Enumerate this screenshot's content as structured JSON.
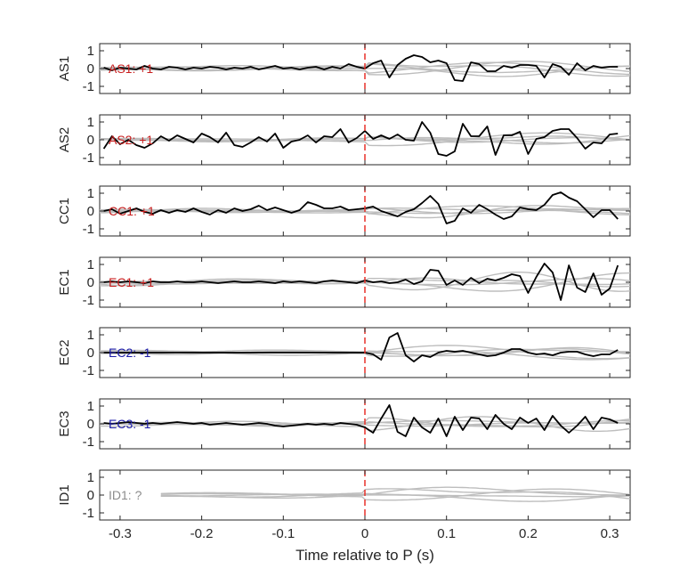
{
  "chart_data": {
    "type": "line",
    "xlabel": "Time relative to P (s)",
    "xlim": [
      -0.325,
      0.325
    ],
    "xticks": [
      -0.3,
      -0.2,
      -0.1,
      0,
      0.1,
      0.2,
      0.3
    ],
    "xtick_labels": [
      "-0.3",
      "-0.2",
      "-0.1",
      "0",
      "0.1",
      "0.2",
      "0.3"
    ],
    "ylim": [
      -1.4,
      1.4
    ],
    "yticks": [
      1,
      0,
      -1
    ],
    "ytick_labels": [
      "1",
      "0",
      "-1"
    ],
    "marker_x": 0,
    "marker_color": "#e8312a",
    "background_series_color": "#bdbdbd",
    "main_series_color": "#000000",
    "panels": [
      {
        "ylabel": "AS1",
        "annotation": "AS1: +1",
        "annotation_color": "#c81e1e",
        "series": {
          "x": [
            -0.32,
            -0.31,
            -0.3,
            -0.29,
            -0.28,
            -0.27,
            -0.26,
            -0.25,
            -0.24,
            -0.23,
            -0.22,
            -0.21,
            -0.2,
            -0.19,
            -0.18,
            -0.17,
            -0.16,
            -0.15,
            -0.14,
            -0.13,
            -0.12,
            -0.11,
            -0.1,
            -0.09,
            -0.08,
            -0.07,
            -0.06,
            -0.05,
            -0.04,
            -0.03,
            -0.02,
            -0.01,
            0,
            0.01,
            0.02,
            0.03,
            0.04,
            0.05,
            0.06,
            0.07,
            0.08,
            0.09,
            0.1,
            0.11,
            0.12,
            0.13,
            0.14,
            0.15,
            0.16,
            0.17,
            0.18,
            0.19,
            0.2,
            0.21,
            0.22,
            0.23,
            0.24,
            0.25,
            0.26,
            0.27,
            0.28,
            0.29,
            0.3,
            0.31
          ],
          "y": [
            0.05,
            -0.1,
            0.05,
            0.0,
            -0.05,
            0.15,
            0.0,
            -0.05,
            0.1,
            0.05,
            -0.05,
            0.05,
            0.0,
            0.1,
            0.05,
            -0.05,
            0.05,
            0.0,
            0.1,
            -0.05,
            0.05,
            0.15,
            0.0,
            0.05,
            -0.05,
            0.05,
            0.1,
            -0.05,
            0.1,
            0.0,
            0.25,
            0.1,
            0.0,
            0.3,
            0.45,
            -0.5,
            0.2,
            0.55,
            0.75,
            0.65,
            0.35,
            0.45,
            0.3,
            -0.65,
            -0.7,
            0.35,
            0.25,
            -0.15,
            -0.15,
            0.15,
            0.05,
            0.2,
            0.2,
            0.15,
            -0.5,
            0.25,
            0.1,
            -0.35,
            0.3,
            -0.1,
            0.15,
            0.05,
            0.1,
            0.1
          ]
        }
      },
      {
        "ylabel": "AS2",
        "annotation": "AS2: +1",
        "annotation_color": "#c81e1e",
        "series": {
          "x": [
            -0.32,
            -0.31,
            -0.3,
            -0.29,
            -0.28,
            -0.27,
            -0.26,
            -0.25,
            -0.24,
            -0.23,
            -0.22,
            -0.21,
            -0.2,
            -0.19,
            -0.18,
            -0.17,
            -0.16,
            -0.15,
            -0.14,
            -0.13,
            -0.12,
            -0.11,
            -0.1,
            -0.09,
            -0.08,
            -0.07,
            -0.06,
            -0.05,
            -0.04,
            -0.03,
            -0.02,
            -0.01,
            0,
            0.01,
            0.02,
            0.03,
            0.04,
            0.05,
            0.06,
            0.07,
            0.08,
            0.09,
            0.1,
            0.11,
            0.12,
            0.13,
            0.14,
            0.15,
            0.16,
            0.17,
            0.18,
            0.19,
            0.2,
            0.21,
            0.22,
            0.23,
            0.24,
            0.25,
            0.26,
            0.27,
            0.28,
            0.29,
            0.3,
            0.31
          ],
          "y": [
            -0.5,
            0.2,
            -0.25,
            0.0,
            -0.3,
            -0.45,
            -0.2,
            0.2,
            -0.05,
            0.25,
            0.05,
            -0.15,
            0.35,
            0.15,
            -0.15,
            0.4,
            -0.3,
            -0.4,
            -0.15,
            0.15,
            -0.1,
            0.35,
            -0.45,
            -0.1,
            0.0,
            0.25,
            -0.15,
            0.2,
            0.15,
            0.6,
            -0.15,
            0.1,
            0.5,
            0.05,
            0.25,
            0.05,
            0.3,
            0.0,
            -0.05,
            1.0,
            0.4,
            -0.8,
            -0.9,
            -0.65,
            0.9,
            0.2,
            0.2,
            0.75,
            -0.85,
            0.25,
            0.25,
            0.45,
            -0.8,
            0.05,
            0.15,
            0.5,
            0.6,
            0.6,
            0.1,
            -0.5,
            -0.15,
            -0.2,
            0.3,
            0.35
          ]
        }
      },
      {
        "ylabel": "CC1",
        "annotation": "CC1: +1",
        "annotation_color": "#c81e1e",
        "series": {
          "x": [
            -0.32,
            -0.31,
            -0.3,
            -0.29,
            -0.28,
            -0.27,
            -0.26,
            -0.25,
            -0.24,
            -0.23,
            -0.22,
            -0.21,
            -0.2,
            -0.19,
            -0.18,
            -0.17,
            -0.16,
            -0.15,
            -0.14,
            -0.13,
            -0.12,
            -0.11,
            -0.1,
            -0.09,
            -0.08,
            -0.07,
            -0.06,
            -0.05,
            -0.04,
            -0.03,
            -0.02,
            -0.01,
            0,
            0.01,
            0.02,
            0.03,
            0.04,
            0.05,
            0.06,
            0.07,
            0.08,
            0.09,
            0.1,
            0.11,
            0.12,
            0.13,
            0.14,
            0.15,
            0.16,
            0.17,
            0.18,
            0.19,
            0.2,
            0.21,
            0.22,
            0.23,
            0.24,
            0.25,
            0.26,
            0.27,
            0.28,
            0.29,
            0.3,
            0.31
          ],
          "y": [
            0.0,
            0.1,
            -0.15,
            0.0,
            0.15,
            -0.05,
            -0.15,
            0.05,
            -0.1,
            0.05,
            -0.05,
            0.15,
            -0.05,
            -0.2,
            0.05,
            -0.1,
            0.15,
            0.0,
            0.1,
            0.3,
            0.05,
            0.2,
            0.05,
            -0.1,
            0.05,
            0.5,
            0.35,
            0.15,
            0.15,
            0.25,
            0.05,
            0.1,
            0.15,
            0.25,
            0.0,
            -0.15,
            -0.3,
            -0.05,
            0.1,
            0.45,
            0.85,
            0.4,
            -0.7,
            -0.55,
            0.15,
            -0.1,
            0.35,
            0.1,
            -0.2,
            -0.45,
            -0.3,
            0.2,
            0.1,
            0.05,
            0.35,
            0.9,
            1.05,
            0.75,
            0.55,
            0.1,
            -0.35,
            0.05,
            0.05,
            -0.45
          ]
        }
      },
      {
        "ylabel": "EC1",
        "annotation": "EC1: +1",
        "annotation_color": "#c81e1e",
        "series": {
          "x": [
            -0.32,
            -0.31,
            -0.3,
            -0.29,
            -0.28,
            -0.27,
            -0.26,
            -0.25,
            -0.24,
            -0.23,
            -0.22,
            -0.21,
            -0.2,
            -0.19,
            -0.18,
            -0.17,
            -0.16,
            -0.15,
            -0.14,
            -0.13,
            -0.12,
            -0.11,
            -0.1,
            -0.09,
            -0.08,
            -0.07,
            -0.06,
            -0.05,
            -0.04,
            -0.03,
            -0.02,
            -0.01,
            0,
            0.01,
            0.02,
            0.03,
            0.04,
            0.05,
            0.06,
            0.07,
            0.08,
            0.09,
            0.1,
            0.11,
            0.12,
            0.13,
            0.14,
            0.15,
            0.16,
            0.17,
            0.18,
            0.19,
            0.2,
            0.21,
            0.22,
            0.23,
            0.24,
            0.25,
            0.26,
            0.27,
            0.28,
            0.29,
            0.3,
            0.31
          ],
          "y": [
            0.0,
            0.05,
            0.0,
            0.05,
            0.0,
            -0.05,
            0.05,
            0.0,
            0.0,
            0.05,
            0.0,
            0.0,
            0.05,
            0.0,
            -0.05,
            0.0,
            0.05,
            0.0,
            0.0,
            0.05,
            0.0,
            -0.05,
            0.05,
            0.0,
            0.05,
            0.0,
            -0.05,
            0.05,
            0.1,
            0.05,
            0.0,
            -0.05,
            0.1,
            0.0,
            0.05,
            -0.05,
            0.0,
            0.15,
            -0.1,
            0.05,
            0.7,
            0.65,
            -0.15,
            0.1,
            -0.15,
            0.25,
            -0.05,
            0.2,
            0.1,
            0.25,
            0.45,
            0.35,
            -0.6,
            0.3,
            1.05,
            0.55,
            -1.0,
            0.95,
            -0.3,
            -0.55,
            0.5,
            -0.7,
            -0.35,
            0.95
          ]
        }
      },
      {
        "ylabel": "EC2",
        "annotation": "EC2: -1",
        "annotation_color": "#1c1ca8",
        "series": {
          "x": [
            -0.32,
            -0.31,
            -0.3,
            -0.29,
            -0.28,
            -0.27,
            -0.26,
            -0.25,
            -0.24,
            -0.23,
            -0.22,
            -0.21,
            -0.2,
            -0.19,
            -0.18,
            -0.17,
            -0.16,
            -0.15,
            -0.14,
            -0.13,
            -0.12,
            -0.11,
            -0.1,
            -0.09,
            -0.08,
            -0.07,
            -0.06,
            -0.05,
            -0.04,
            -0.03,
            -0.02,
            -0.01,
            0,
            0.01,
            0.02,
            0.03,
            0.04,
            0.05,
            0.06,
            0.07,
            0.08,
            0.09,
            0.1,
            0.11,
            0.12,
            0.13,
            0.14,
            0.15,
            0.16,
            0.17,
            0.18,
            0.19,
            0.2,
            0.21,
            0.22,
            0.23,
            0.24,
            0.25,
            0.26,
            0.27,
            0.28,
            0.29,
            0.3,
            0.31
          ],
          "y": [
            0.0,
            0.0,
            0.0,
            0.0,
            0.0,
            0.0,
            0.0,
            0.0,
            0.0,
            0.0,
            0.0,
            0.0,
            0.0,
            0.0,
            0.0,
            0.0,
            0.0,
            0.0,
            0.0,
            0.0,
            0.0,
            0.0,
            0.0,
            0.0,
            0.0,
            0.0,
            0.0,
            0.0,
            0.0,
            0.0,
            0.0,
            0.0,
            0.0,
            -0.1,
            -0.4,
            0.85,
            1.1,
            -0.15,
            -0.5,
            -0.15,
            -0.25,
            0.0,
            0.1,
            0.05,
            0.1,
            0.0,
            -0.1,
            -0.2,
            -0.15,
            0.0,
            0.2,
            0.2,
            0.0,
            -0.1,
            -0.05,
            -0.15,
            0.0,
            0.05,
            0.05,
            -0.1,
            -0.2,
            -0.1,
            -0.1,
            0.15
          ]
        }
      },
      {
        "ylabel": "EC3",
        "annotation": "EC3: -1",
        "annotation_color": "#1c1ca8",
        "series": {
          "x": [
            -0.32,
            -0.31,
            -0.3,
            -0.29,
            -0.28,
            -0.27,
            -0.26,
            -0.25,
            -0.24,
            -0.23,
            -0.22,
            -0.21,
            -0.2,
            -0.19,
            -0.18,
            -0.17,
            -0.16,
            -0.15,
            -0.14,
            -0.13,
            -0.12,
            -0.11,
            -0.1,
            -0.09,
            -0.08,
            -0.07,
            -0.06,
            -0.05,
            -0.04,
            -0.03,
            -0.02,
            -0.01,
            0,
            0.01,
            0.02,
            0.03,
            0.04,
            0.05,
            0.06,
            0.07,
            0.08,
            0.09,
            0.1,
            0.11,
            0.12,
            0.13,
            0.14,
            0.15,
            0.16,
            0.17,
            0.18,
            0.19,
            0.2,
            0.21,
            0.22,
            0.23,
            0.24,
            0.25,
            0.26,
            0.27,
            0.28,
            0.29,
            0.3,
            0.31
          ],
          "y": [
            0.05,
            0.0,
            0.05,
            0.1,
            0.05,
            0.0,
            0.05,
            0.0,
            0.05,
            0.1,
            0.05,
            0.0,
            0.05,
            -0.05,
            0.0,
            0.05,
            0.0,
            -0.05,
            0.0,
            0.05,
            0.0,
            -0.1,
            -0.15,
            -0.1,
            -0.05,
            0.0,
            -0.05,
            0.0,
            -0.05,
            0.05,
            0.0,
            -0.05,
            -0.2,
            -0.5,
            0.3,
            1.05,
            -0.45,
            -0.7,
            0.35,
            -0.2,
            -0.5,
            0.3,
            -0.7,
            0.4,
            -0.35,
            0.35,
            0.3,
            -0.3,
            0.5,
            0.0,
            -0.3,
            0.35,
            0.05,
            0.3,
            -0.35,
            0.45,
            -0.1,
            -0.5,
            -0.1,
            0.4,
            -0.3,
            0.35,
            0.25,
            0.05
          ]
        }
      },
      {
        "ylabel": "ID1",
        "annotation": "ID1: ?",
        "annotation_color": "#8c8c8c",
        "series": null
      }
    ]
  }
}
